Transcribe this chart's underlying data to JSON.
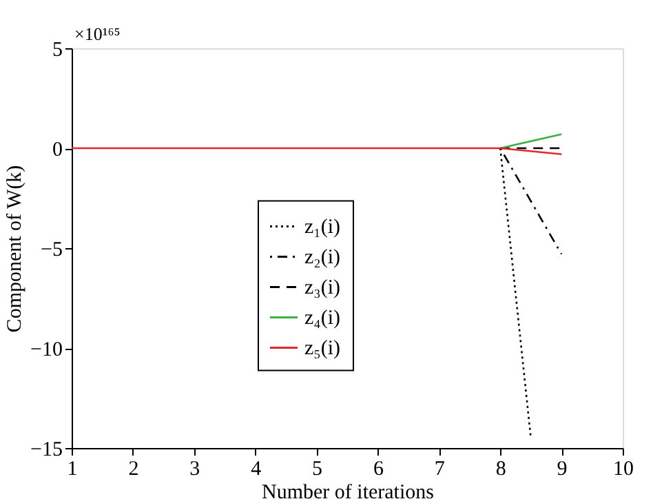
{
  "chart_data": {
    "type": "line",
    "xlabel": "Number of iterations",
    "ylabel": "Component of W(k)",
    "annotations": [
      "×10¹⁶⁵"
    ],
    "xlim": [
      1,
      10
    ],
    "ylim": [
      -15,
      5
    ],
    "xticks": [
      1,
      2,
      3,
      4,
      5,
      6,
      7,
      8,
      9,
      10
    ],
    "yticks": [
      -15,
      -10,
      -5,
      0,
      5
    ],
    "grid": false,
    "legend": "left",
    "marker": "none",
    "series": [
      {
        "name": "z₁(i)",
        "color": "#000000",
        "line_style": "dotted",
        "x": [
          8,
          8.5
        ],
        "values": [
          0,
          -14.5
        ]
      },
      {
        "name": "z₂(i)",
        "color": "#000000",
        "line_style": "dashdot",
        "x": [
          8,
          9
        ],
        "values": [
          0,
          -5.3
        ]
      },
      {
        "name": "z₃(i)",
        "color": "#000000",
        "line_style": "dashed",
        "x": [
          8,
          9
        ],
        "values": [
          0,
          0
        ]
      },
      {
        "name": "z₄(i)",
        "color": "#3cb043",
        "line_style": "solid",
        "x": [
          8,
          9
        ],
        "values": [
          0,
          0.7
        ]
      },
      {
        "name": "z₅(i)",
        "color": "#e8262a",
        "line_style": "solid",
        "x": [
          1,
          2,
          3,
          4,
          5,
          6,
          7,
          8,
          9
        ],
        "values": [
          0,
          0,
          0,
          0,
          0,
          0,
          0,
          0,
          -0.3
        ]
      }
    ]
  }
}
